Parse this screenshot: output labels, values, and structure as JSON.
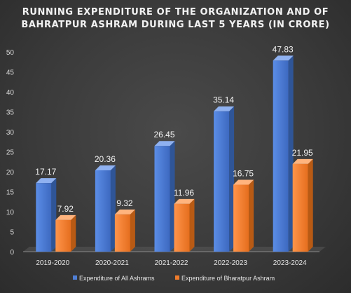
{
  "chart_data": {
    "type": "bar",
    "title_line1": "RUNNING EXPENDITURE OF THE ORGANIZATION AND OF",
    "title_line2": "BAHRATPUR ASHRAM DURING LAST 5 YEARS (IN CRORE)",
    "categories": [
      "2019-2020",
      "2020-2021",
      "2021-2022",
      "2022-2023",
      "2023-2024"
    ],
    "series": [
      {
        "name": "Expenditure of All Ashrams",
        "values": [
          17.17,
          20.36,
          26.45,
          35.14,
          47.83
        ],
        "labels": [
          "17.17",
          "20.36",
          "26.45",
          "35.14",
          "47.83"
        ],
        "color": "#4f7fd6"
      },
      {
        "name": "Expenditure of Bharatpur Ashram",
        "values": [
          7.92,
          9.32,
          11.96,
          16.75,
          21.95
        ],
        "labels": [
          "7.92",
          "9.32",
          "11.96",
          "16.75",
          "21.95"
        ],
        "color": "#f07c2b"
      }
    ],
    "yticks": [
      "0",
      "5",
      "10",
      "15",
      "20",
      "25",
      "30",
      "35",
      "40",
      "45",
      "50"
    ],
    "ylim": [
      0,
      50
    ],
    "grid": false,
    "legend_position": "bottom"
  }
}
